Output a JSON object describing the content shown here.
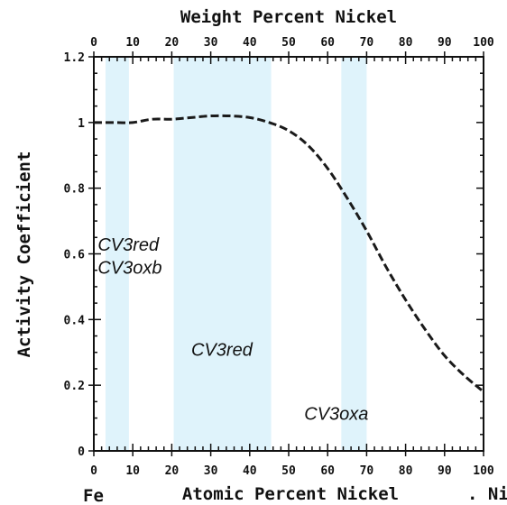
{
  "chart_data": {
    "type": "line",
    "title": "",
    "top_axis": {
      "label": "Weight Percent Nickel",
      "ticks": [
        "0",
        "10",
        "20",
        "30",
        "40",
        "50",
        "60",
        "70",
        "80",
        "90",
        "100"
      ]
    },
    "bottom_axis": {
      "label": "Atomic Percent Nickel",
      "ticks": [
        "0",
        "10",
        "20",
        "30",
        "40",
        "50",
        "60",
        "70",
        "80",
        "90",
        "100"
      ],
      "left_end_label": "Fe",
      "right_end_label": ". Ni"
    },
    "ylabel": "Activity Coefficient",
    "y_ticks": [
      "0",
      "0.2",
      "0.4",
      "0.6",
      "0.8",
      "1",
      "1.2"
    ],
    "xlim": [
      0,
      100
    ],
    "ylim": [
      0,
      1.2
    ],
    "grid": false,
    "line_style": "dashed",
    "line_color": "#1a1a1a",
    "band_color": "#dff3fb",
    "series": [
      {
        "x": [
          0,
          5,
          10,
          15,
          20,
          25,
          30,
          35,
          40,
          45,
          50,
          55,
          60,
          65,
          70,
          75,
          80,
          85,
          90,
          95,
          100
        ],
        "y": [
          1.0,
          1.0,
          1.0,
          1.01,
          1.01,
          1.015,
          1.02,
          1.02,
          1.015,
          1.0,
          0.975,
          0.93,
          0.86,
          0.77,
          0.67,
          0.56,
          0.46,
          0.37,
          0.29,
          0.23,
          0.18
        ]
      }
    ],
    "bands": [
      {
        "x_start": 3,
        "x_end": 9
      },
      {
        "x_start": 20.5,
        "x_end": 45.5
      },
      {
        "x_start": 63.5,
        "x_end": 70
      }
    ],
    "annotations": [
      {
        "text": "CV3red",
        "x": 1,
        "y": 0.61
      },
      {
        "text": "CV3oxb",
        "x": 1,
        "y": 0.54
      },
      {
        "text": "CV3red",
        "x": 25,
        "y": 0.29
      },
      {
        "text": "CV3oxa",
        "x": 54,
        "y": 0.095
      }
    ]
  }
}
